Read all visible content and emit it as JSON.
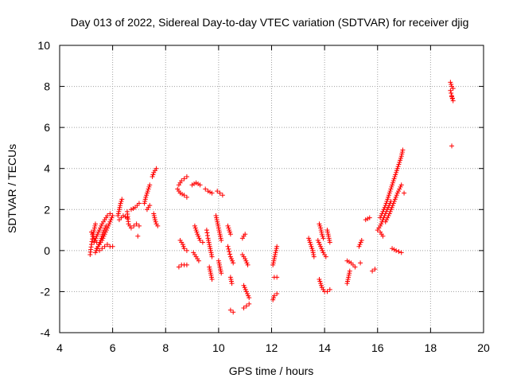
{
  "chart_data": {
    "type": "scatter",
    "title": "Day 013 of 2022, Sidereal Day-to-day VTEC variation (SDTVAR) for receiver djig",
    "xlabel": "GPS time / hours",
    "ylabel": "SDTVAR / TECUs",
    "xlim": [
      4,
      20
    ],
    "ylim": [
      -4,
      10
    ],
    "xticks": [
      "4",
      "6",
      "8",
      "10",
      "12",
      "14",
      "16",
      "18",
      "20"
    ],
    "yticks": [
      "-4",
      "-2",
      "0",
      "2",
      "4",
      "6",
      "8",
      "10"
    ],
    "grid": true,
    "marker": "plus",
    "color": "#ff0000",
    "series": [
      {
        "name": "SDTVAR",
        "segments": [
          [
            [
              5.15,
              -0.2
            ],
            [
              5.2,
              0.3
            ],
            [
              5.25,
              0.7
            ],
            [
              5.3,
              1.0
            ],
            [
              5.35,
              1.3
            ]
          ],
          [
            [
              5.2,
              0.9
            ],
            [
              5.3,
              0.6
            ],
            [
              5.4,
              0.4
            ],
            [
              5.5,
              0.3
            ],
            [
              5.6,
              0.5
            ],
            [
              5.7,
              0.8
            ],
            [
              5.8,
              1.1
            ],
            [
              5.9,
              1.4
            ],
            [
              6.0,
              1.7
            ]
          ],
          [
            [
              5.3,
              0.4
            ],
            [
              5.4,
              0.7
            ],
            [
              5.5,
              1.0
            ],
            [
              5.6,
              1.3
            ],
            [
              5.7,
              1.5
            ],
            [
              5.8,
              1.7
            ],
            [
              5.9,
              1.8
            ]
          ],
          [
            [
              5.4,
              0.1
            ],
            [
              5.5,
              0.0
            ],
            [
              5.6,
              0.1
            ],
            [
              5.7,
              0.2
            ],
            [
              5.8,
              0.3
            ],
            [
              5.9,
              0.2
            ],
            [
              6.0,
              0.2
            ]
          ],
          [
            [
              5.35,
              -0.1
            ],
            [
              5.45,
              0.2
            ],
            [
              5.55,
              0.5
            ],
            [
              5.65,
              0.9
            ],
            [
              5.75,
              1.2
            ]
          ],
          [
            [
              6.2,
              1.7
            ],
            [
              6.25,
              2.0
            ],
            [
              6.3,
              2.3
            ],
            [
              6.35,
              2.5
            ]
          ],
          [
            [
              6.25,
              1.5
            ],
            [
              6.4,
              1.7
            ],
            [
              6.55,
              1.6
            ]
          ],
          [
            [
              6.55,
              1.9
            ],
            [
              6.6,
              1.3
            ],
            [
              6.7,
              1.1
            ],
            [
              6.8,
              1.2
            ],
            [
              6.9,
              1.3
            ],
            [
              7.0,
              1.2
            ]
          ],
          [
            [
              6.7,
              2.0
            ],
            [
              6.85,
              2.1
            ],
            [
              7.0,
              2.3
            ]
          ],
          [
            [
              6.95,
              0.7
            ]
          ],
          [
            [
              7.2,
              2.3
            ],
            [
              7.25,
              2.6
            ],
            [
              7.3,
              2.8
            ],
            [
              7.35,
              3.0
            ],
            [
              7.4,
              3.2
            ]
          ],
          [
            [
              7.3,
              2.0
            ],
            [
              7.4,
              2.2
            ]
          ],
          [
            [
              7.5,
              3.6
            ],
            [
              7.55,
              3.8
            ],
            [
              7.65,
              4.0
            ]
          ],
          [
            [
              7.55,
              1.8
            ],
            [
              7.6,
              1.5
            ],
            [
              7.65,
              1.3
            ],
            [
              7.7,
              1.2
            ]
          ],
          [
            [
              8.45,
              3.0
            ],
            [
              8.55,
              2.8
            ],
            [
              8.7,
              2.7
            ],
            [
              8.8,
              2.6
            ]
          ],
          [
            [
              8.5,
              3.2
            ],
            [
              8.6,
              3.4
            ],
            [
              8.7,
              3.5
            ],
            [
              8.8,
              3.6
            ]
          ],
          [
            [
              8.55,
              0.5
            ],
            [
              8.6,
              0.4
            ],
            [
              8.65,
              0.3
            ],
            [
              8.7,
              0.1
            ],
            [
              8.8,
              0.0
            ]
          ],
          [
            [
              8.5,
              -0.8
            ],
            [
              8.6,
              -0.7
            ],
            [
              8.7,
              -0.7
            ],
            [
              8.8,
              -0.7
            ]
          ],
          [
            [
              9.0,
              3.2
            ],
            [
              9.15,
              3.3
            ],
            [
              9.3,
              3.2
            ]
          ],
          [
            [
              9.1,
              1.2
            ],
            [
              9.2,
              0.8
            ],
            [
              9.3,
              0.5
            ],
            [
              9.4,
              0.4
            ]
          ],
          [
            [
              9.05,
              -0.1
            ],
            [
              9.15,
              -0.3
            ],
            [
              9.25,
              -0.5
            ]
          ],
          [
            [
              9.5,
              3.0
            ],
            [
              9.6,
              2.9
            ],
            [
              9.75,
              2.8
            ]
          ],
          [
            [
              9.55,
              1.0
            ],
            [
              9.6,
              0.6
            ],
            [
              9.65,
              0.3
            ],
            [
              9.7,
              0.0
            ],
            [
              9.75,
              -0.3
            ]
          ],
          [
            [
              9.65,
              -0.8
            ],
            [
              9.7,
              -1.1
            ],
            [
              9.75,
              -1.4
            ]
          ],
          [
            [
              9.9,
              1.7
            ],
            [
              9.95,
              1.4
            ],
            [
              10.0,
              1.1
            ],
            [
              10.05,
              0.8
            ],
            [
              10.1,
              0.5
            ]
          ],
          [
            [
              9.95,
              2.9
            ],
            [
              10.05,
              2.8
            ],
            [
              10.15,
              2.7
            ]
          ],
          [
            [
              10.0,
              -0.5
            ],
            [
              10.05,
              -0.8
            ],
            [
              10.1,
              -1.1
            ]
          ],
          [
            [
              10.35,
              1.2
            ],
            [
              10.4,
              1.0
            ],
            [
              10.45,
              0.8
            ]
          ],
          [
            [
              10.35,
              0.2
            ],
            [
              10.45,
              -0.3
            ],
            [
              10.55,
              -0.6
            ]
          ],
          [
            [
              10.45,
              -1.3
            ],
            [
              10.5,
              -1.6
            ]
          ],
          [
            [
              10.45,
              -2.9
            ],
            [
              10.55,
              -3.0
            ]
          ],
          [
            [
              10.9,
              0.6
            ],
            [
              10.95,
              0.7
            ],
            [
              11.0,
              0.8
            ]
          ],
          [
            [
              10.9,
              -0.2
            ],
            [
              11.0,
              -0.4
            ],
            [
              11.1,
              -0.7
            ]
          ],
          [
            [
              10.95,
              -1.7
            ],
            [
              11.05,
              -2.0
            ],
            [
              11.15,
              -2.3
            ]
          ],
          [
            [
              10.95,
              -2.8
            ],
            [
              11.05,
              -2.7
            ],
            [
              11.15,
              -2.6
            ]
          ],
          [
            [
              12.05,
              -0.7
            ],
            [
              12.1,
              -0.4
            ],
            [
              12.15,
              -0.1
            ],
            [
              12.2,
              0.2
            ]
          ],
          [
            [
              12.1,
              -1.3
            ],
            [
              12.2,
              -1.3
            ]
          ],
          [
            [
              12.05,
              -2.4
            ],
            [
              12.1,
              -2.2
            ],
            [
              12.2,
              -2.1
            ]
          ],
          [
            [
              13.4,
              0.6
            ],
            [
              13.5,
              0.2
            ],
            [
              13.55,
              0.0
            ],
            [
              13.6,
              -0.3
            ]
          ],
          [
            [
              13.8,
              1.3
            ],
            [
              13.85,
              1.1
            ],
            [
              13.9,
              0.8
            ],
            [
              13.95,
              0.6
            ]
          ],
          [
            [
              13.75,
              0.5
            ],
            [
              13.85,
              0.2
            ],
            [
              13.95,
              -0.1
            ],
            [
              14.05,
              -0.3
            ]
          ],
          [
            [
              13.8,
              -1.4
            ],
            [
              13.9,
              -1.8
            ],
            [
              14.0,
              -2.0
            ],
            [
              14.1,
              -2.0
            ],
            [
              14.2,
              -1.9
            ]
          ],
          [
            [
              14.1,
              1.0
            ],
            [
              14.15,
              0.7
            ],
            [
              14.2,
              0.4
            ]
          ],
          [
            [
              14.85,
              -1.6
            ],
            [
              14.9,
              -1.3
            ],
            [
              14.95,
              -1.0
            ]
          ],
          [
            [
              14.85,
              -0.5
            ],
            [
              15.0,
              -0.6
            ],
            [
              15.15,
              -0.8
            ]
          ],
          [
            [
              15.3,
              0.2
            ],
            [
              15.4,
              0.5
            ]
          ],
          [
            [
              15.35,
              -0.6
            ]
          ],
          [
            [
              15.55,
              1.5
            ],
            [
              15.7,
              1.6
            ]
          ],
          [
            [
              15.8,
              -1.0
            ],
            [
              15.9,
              -0.9
            ]
          ],
          [
            [
              16.0,
              1.0
            ],
            [
              16.1,
              1.2
            ],
            [
              16.2,
              1.5
            ],
            [
              16.3,
              1.8
            ],
            [
              16.4,
              2.1
            ],
            [
              16.5,
              2.4
            ]
          ],
          [
            [
              16.1,
              1.6
            ],
            [
              16.2,
              1.9
            ],
            [
              16.3,
              2.2
            ],
            [
              16.4,
              2.6
            ],
            [
              16.5,
              3.0
            ],
            [
              16.6,
              3.4
            ],
            [
              16.7,
              3.8
            ],
            [
              16.8,
              4.2
            ],
            [
              16.9,
              4.6
            ],
            [
              16.95,
              4.9
            ]
          ],
          [
            [
              16.3,
              1.4
            ],
            [
              16.45,
              1.8
            ],
            [
              16.6,
              2.3
            ],
            [
              16.75,
              2.8
            ],
            [
              16.9,
              3.2
            ]
          ],
          [
            [
              16.1,
              0.9
            ],
            [
              16.2,
              0.7
            ]
          ],
          [
            [
              16.55,
              0.1
            ],
            [
              16.7,
              0.0
            ],
            [
              16.9,
              -0.1
            ]
          ],
          [
            [
              17.0,
              2.8
            ]
          ],
          [
            [
              18.75,
              8.2
            ],
            [
              18.8,
              8.0
            ],
            [
              18.85,
              7.9
            ]
          ],
          [
            [
              18.8,
              7.5
            ],
            [
              18.85,
              7.3
            ],
            [
              18.75,
              7.8
            ]
          ],
          [
            [
              18.8,
              5.1
            ]
          ]
        ]
      }
    ]
  }
}
